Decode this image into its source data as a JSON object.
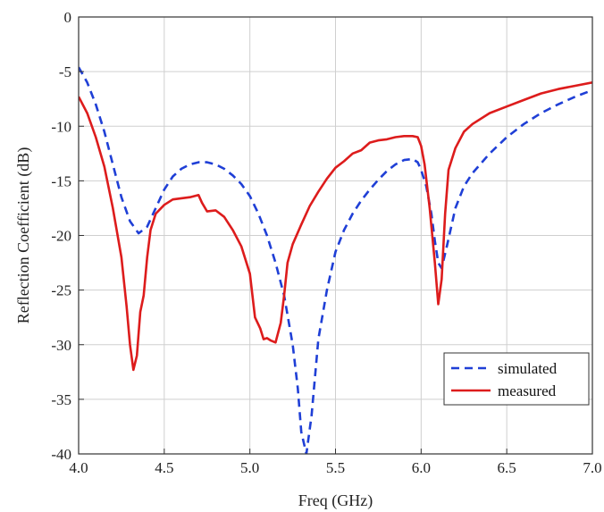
{
  "chart_data": {
    "type": "line",
    "title": "",
    "xlabel": "Freq (GHz)",
    "ylabel": "Reflection Coefficient (dB)",
    "xlim": [
      4.0,
      7.0
    ],
    "ylim": [
      -40,
      0
    ],
    "xticks": [
      4.0,
      4.5,
      5.0,
      5.5,
      6.0,
      6.5,
      7.0
    ],
    "xtick_labels": [
      "4.0",
      "4.5",
      "5.0",
      "5.5",
      "6.0",
      "6.5",
      "7.0"
    ],
    "yticks": [
      0,
      -5,
      -10,
      -15,
      -20,
      -25,
      -30,
      -35,
      -40
    ],
    "ytick_labels": [
      "0",
      "-5",
      "-10",
      "-15",
      "-20",
      "-25",
      "-30",
      "-35",
      "-40"
    ],
    "grid": true,
    "legend_position": "bottom-right",
    "series": [
      {
        "name": "simulated",
        "color": "#1f3fd6",
        "style": "dashed",
        "x": [
          4.0,
          4.05,
          4.1,
          4.15,
          4.2,
          4.25,
          4.3,
          4.35,
          4.4,
          4.45,
          4.5,
          4.55,
          4.6,
          4.65,
          4.7,
          4.75,
          4.8,
          4.85,
          4.9,
          4.95,
          5.0,
          5.05,
          5.1,
          5.15,
          5.2,
          5.25,
          5.28,
          5.3,
          5.33,
          5.36,
          5.4,
          5.45,
          5.5,
          5.55,
          5.6,
          5.65,
          5.7,
          5.75,
          5.8,
          5.85,
          5.9,
          5.95,
          5.98,
          6.0,
          6.03,
          6.06,
          6.08,
          6.1,
          6.12,
          6.15,
          6.2,
          6.25,
          6.3,
          6.4,
          6.5,
          6.6,
          6.7,
          6.8,
          6.9,
          7.0
        ],
        "values": [
          -4.6,
          -6.0,
          -8.0,
          -10.5,
          -13.5,
          -16.5,
          -18.7,
          -19.8,
          -19.2,
          -17.5,
          -15.8,
          -14.6,
          -13.9,
          -13.5,
          -13.3,
          -13.3,
          -13.5,
          -13.9,
          -14.5,
          -15.3,
          -16.4,
          -18.0,
          -20.0,
          -22.5,
          -25.5,
          -30.0,
          -34.0,
          -38.0,
          -40.0,
          -36.5,
          -29.5,
          -25.0,
          -21.5,
          -19.5,
          -18.0,
          -16.8,
          -15.8,
          -14.9,
          -14.1,
          -13.5,
          -13.1,
          -13.0,
          -13.3,
          -14.0,
          -15.5,
          -18.0,
          -20.5,
          -22.5,
          -23.0,
          -21.0,
          -17.5,
          -15.5,
          -14.3,
          -12.5,
          -11.0,
          -9.8,
          -8.8,
          -8.0,
          -7.3,
          -6.7
        ]
      },
      {
        "name": "measured",
        "color": "#dd1c1c",
        "style": "solid",
        "x": [
          4.0,
          4.05,
          4.1,
          4.15,
          4.2,
          4.25,
          4.28,
          4.3,
          4.32,
          4.34,
          4.36,
          4.38,
          4.4,
          4.42,
          4.45,
          4.5,
          4.55,
          4.6,
          4.65,
          4.7,
          4.72,
          4.75,
          4.8,
          4.85,
          4.9,
          4.95,
          5.0,
          5.03,
          5.06,
          5.08,
          5.1,
          5.12,
          5.15,
          5.18,
          5.2,
          5.22,
          5.25,
          5.3,
          5.35,
          5.4,
          5.45,
          5.5,
          5.55,
          5.6,
          5.65,
          5.7,
          5.75,
          5.8,
          5.85,
          5.9,
          5.95,
          5.98,
          6.0,
          6.02,
          6.05,
          6.08,
          6.1,
          6.12,
          6.14,
          6.16,
          6.2,
          6.25,
          6.3,
          6.4,
          6.5,
          6.6,
          6.7,
          6.8,
          6.9,
          7.0
        ],
        "values": [
          -7.3,
          -8.8,
          -11.0,
          -13.7,
          -17.5,
          -22.0,
          -26.5,
          -30.0,
          -32.3,
          -31.0,
          -27.0,
          -25.5,
          -22.0,
          -19.5,
          -18.0,
          -17.2,
          -16.7,
          -16.6,
          -16.5,
          -16.3,
          -17.0,
          -17.8,
          -17.7,
          -18.3,
          -19.5,
          -21.0,
          -23.5,
          -27.5,
          -28.5,
          -29.5,
          -29.4,
          -29.6,
          -29.8,
          -28.0,
          -25.5,
          -22.5,
          -20.8,
          -19.0,
          -17.3,
          -16.0,
          -14.8,
          -13.8,
          -13.2,
          -12.5,
          -12.2,
          -11.5,
          -11.3,
          -11.2,
          -11.0,
          -10.9,
          -10.9,
          -11.0,
          -11.8,
          -13.5,
          -17.5,
          -22.5,
          -26.3,
          -24.0,
          -18.0,
          -14.0,
          -12.0,
          -10.5,
          -9.8,
          -8.8,
          -8.2,
          -7.6,
          -7.0,
          -6.6,
          -6.3,
          -6.0
        ]
      }
    ]
  }
}
